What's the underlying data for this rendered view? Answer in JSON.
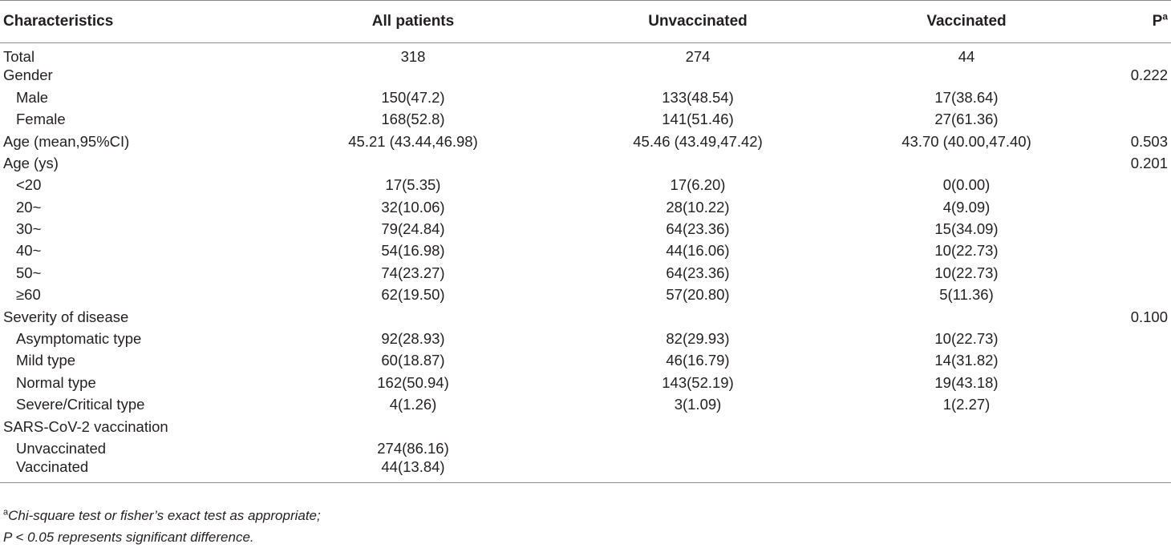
{
  "table": {
    "headers": {
      "characteristics": "Characteristics",
      "all_patients": "All patients",
      "unvaccinated": "Unvaccinated",
      "vaccinated": "Vaccinated",
      "p": "P",
      "p_sup": "a"
    },
    "rows": [
      {
        "label": "Total",
        "all": "318",
        "unvax": "274",
        "vax": "44",
        "p": ""
      },
      {
        "label": "Gender",
        "all": "",
        "unvax": "",
        "vax": "",
        "p": "0.222"
      },
      {
        "label": "Male",
        "all": "150(47.2)",
        "unvax": "133(48.54)",
        "vax": "17(38.64)",
        "p": ""
      },
      {
        "label": "Female",
        "all": "168(52.8)",
        "unvax": "141(51.46)",
        "vax": "27(61.36)",
        "p": ""
      },
      {
        "label": "Age (mean,95%CI)",
        "all": "45.21 (43.44,46.98)",
        "unvax": "45.46 (43.49,47.42)",
        "vax": "43.70 (40.00,47.40)",
        "p": "0.503"
      },
      {
        "label": "Age (ys)",
        "all": "",
        "unvax": "",
        "vax": "",
        "p": "0.201"
      },
      {
        "label": "<20",
        "all": "17(5.35)",
        "unvax": "17(6.20)",
        "vax": "0(0.00)",
        "p": ""
      },
      {
        "label": "20~",
        "all": "32(10.06)",
        "unvax": "28(10.22)",
        "vax": "4(9.09)",
        "p": ""
      },
      {
        "label": "30~",
        "all": "79(24.84)",
        "unvax": "64(23.36)",
        "vax": "15(34.09)",
        "p": ""
      },
      {
        "label": "40~",
        "all": "54(16.98)",
        "unvax": "44(16.06)",
        "vax": "10(22.73)",
        "p": ""
      },
      {
        "label": "50~",
        "all": "74(23.27)",
        "unvax": "64(23.36)",
        "vax": "10(22.73)",
        "p": ""
      },
      {
        "label": "≥60",
        "all": "62(19.50)",
        "unvax": "57(20.80)",
        "vax": "5(11.36)",
        "p": ""
      },
      {
        "label": "Severity of disease",
        "all": "",
        "unvax": "",
        "vax": "",
        "p": "0.100"
      },
      {
        "label": "Asymptomatic type",
        "all": "92(28.93)",
        "unvax": "82(29.93)",
        "vax": "10(22.73)",
        "p": ""
      },
      {
        "label": "Mild type",
        "all": "60(18.87)",
        "unvax": "46(16.79)",
        "vax": "14(31.82)",
        "p": ""
      },
      {
        "label": "Normal type",
        "all": "162(50.94)",
        "unvax": "143(52.19)",
        "vax": "19(43.18)",
        "p": ""
      },
      {
        "label": "Severe/Critical type",
        "all": "4(1.26)",
        "unvax": "3(1.09)",
        "vax": "1(2.27)",
        "p": ""
      },
      {
        "label": "SARS-CoV-2 vaccination",
        "all": "",
        "unvax": "",
        "vax": "",
        "p": ""
      },
      {
        "label": "Unvaccinated",
        "all": "274(86.16)",
        "unvax": "",
        "vax": "",
        "p": ""
      },
      {
        "label": "Vaccinated",
        "all": "44(13.84)",
        "unvax": "",
        "vax": "",
        "p": ""
      }
    ]
  },
  "footnotes": {
    "note_a_sup": "a",
    "note_a_text": "Chi-square test or fisher’s exact test as appropriate;",
    "note_b_text": "P < 0.05 represents significant difference."
  }
}
